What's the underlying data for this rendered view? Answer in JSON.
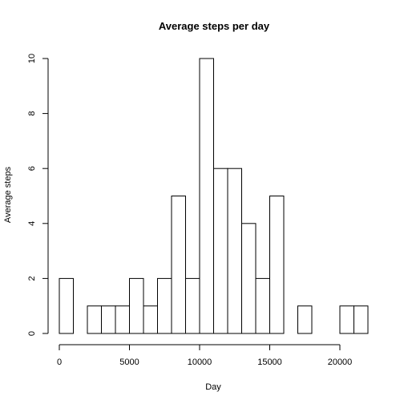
{
  "chart_data": {
    "type": "bar",
    "title": "Average steps per day",
    "xlabel": "Day",
    "ylabel": "Average steps",
    "bin_width": 1000,
    "bins_start": [
      0,
      1000,
      2000,
      3000,
      4000,
      5000,
      6000,
      7000,
      8000,
      9000,
      10000,
      11000,
      12000,
      13000,
      14000,
      15000,
      16000,
      17000,
      18000,
      19000,
      20000,
      21000
    ],
    "values": [
      2,
      0,
      1,
      1,
      1,
      2,
      1,
      2,
      5,
      2,
      10,
      6,
      6,
      4,
      2,
      5,
      0,
      1,
      0,
      0,
      1,
      1
    ],
    "xlim": [
      0,
      22000
    ],
    "ylim": [
      0,
      10
    ],
    "xticks": [
      0,
      5000,
      10000,
      15000,
      20000
    ],
    "yticks": [
      0,
      2,
      4,
      6,
      8,
      10
    ],
    "grid": false
  }
}
